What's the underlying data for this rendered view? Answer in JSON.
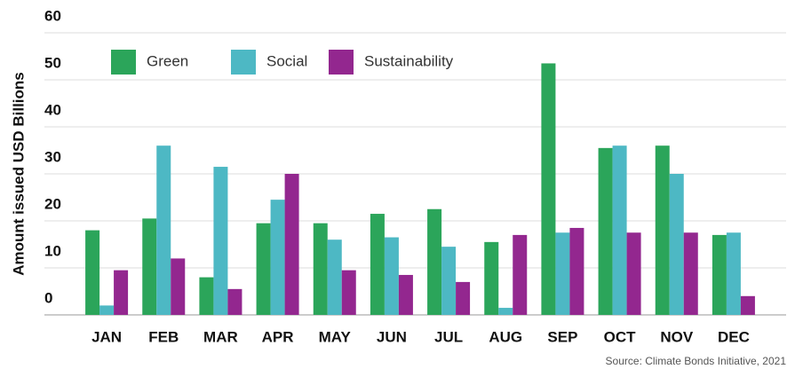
{
  "chart_data": {
    "type": "bar",
    "y_label": "Amount issued USD Billions",
    "source": "Source: Climate Bonds Initiative, 2021",
    "categories": [
      "JAN",
      "FEB",
      "MAR",
      "APR",
      "MAY",
      "JUN",
      "JUL",
      "AUG",
      "SEP",
      "OCT",
      "NOV",
      "DEC"
    ],
    "series": [
      {
        "name": "Green",
        "color": "#2ba55a",
        "values": [
          18,
          20.5,
          8,
          19.5,
          19.5,
          21.5,
          22.5,
          15.5,
          53.5,
          35.5,
          36,
          17
        ]
      },
      {
        "name": "Social",
        "color": "#4db8c4",
        "values": [
          2,
          36,
          31.5,
          24.5,
          16,
          16.5,
          14.5,
          1.5,
          17.5,
          36,
          30,
          17.5
        ]
      },
      {
        "name": "Sustainability",
        "color": "#93278f",
        "values": [
          9.5,
          12,
          5.5,
          30,
          9.5,
          8.5,
          7,
          17,
          18.5,
          17.5,
          17.5,
          4
        ]
      }
    ],
    "ylim": [
      0,
      60
    ],
    "yticks": [
      0,
      10,
      20,
      30,
      40,
      50,
      60
    ],
    "grid": true,
    "legend": "top-left"
  }
}
